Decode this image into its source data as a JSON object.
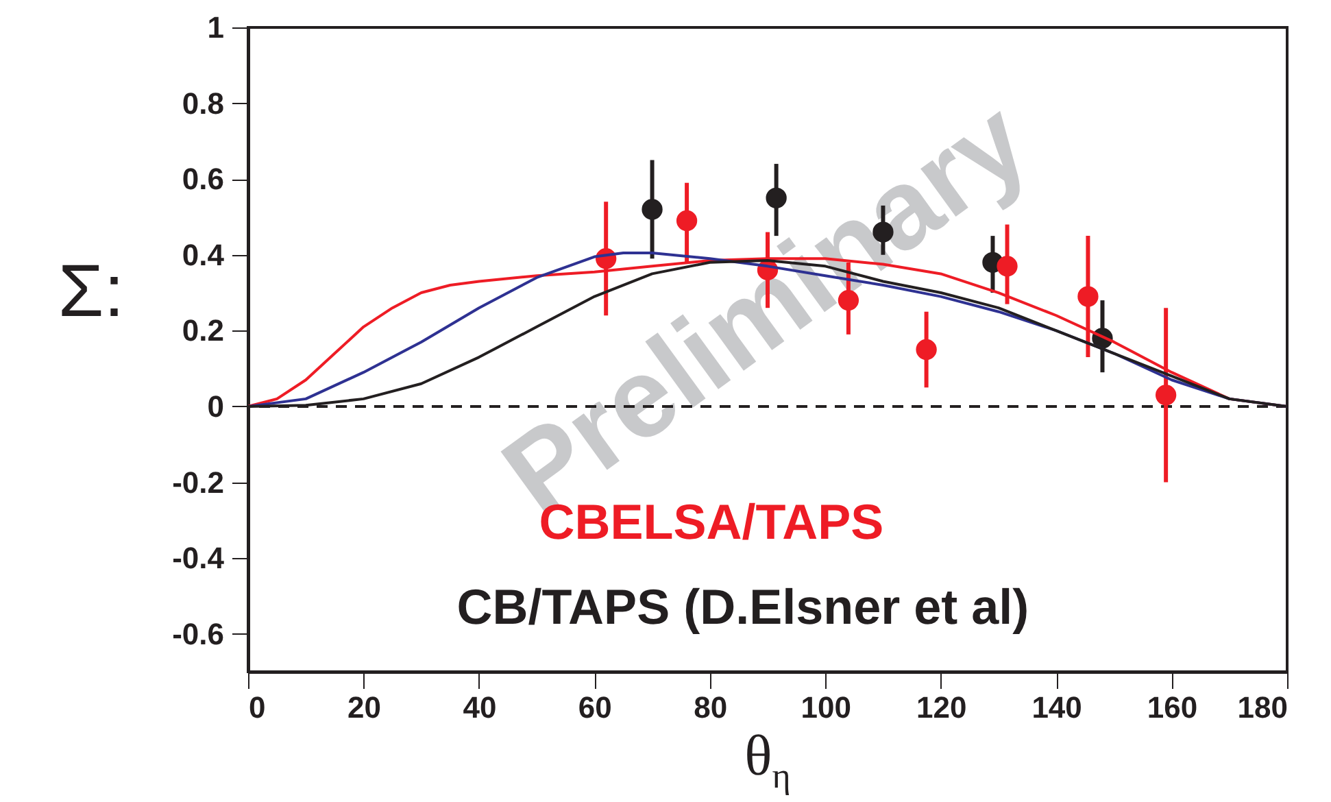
{
  "chart_data": {
    "type": "scatter",
    "xlabel": "θ$_{η}$",
    "ylabel": "Σ:",
    "xlim": [
      0,
      180
    ],
    "ylim": [
      -0.7,
      1
    ],
    "xticks": [
      0,
      20,
      40,
      60,
      80,
      100,
      120,
      140,
      160,
      180
    ],
    "yticks": [
      -0.6,
      -0.4,
      -0.2,
      0,
      0.2,
      0.4,
      0.6,
      0.8,
      1
    ],
    "grid": false,
    "legend": "bottom",
    "marker": "circle",
    "annotations": [
      "Preliminary"
    ],
    "ref_lines": [
      {
        "axis": "y",
        "value": 0,
        "color": "#231f20",
        "line_style": "dashed"
      }
    ],
    "series": [
      {
        "type": "line",
        "marker": "none",
        "color": "#ee1c25",
        "x": [
          0,
          5,
          10,
          15,
          20,
          25,
          30,
          35,
          40,
          50,
          60,
          70,
          80,
          90,
          100,
          110,
          120,
          130,
          140,
          150,
          160,
          170,
          180
        ],
        "values": [
          0,
          0.02,
          0.07,
          0.14,
          0.21,
          0.26,
          0.3,
          0.32,
          0.33,
          0.345,
          0.355,
          0.37,
          0.385,
          0.39,
          0.39,
          0.375,
          0.35,
          0.3,
          0.24,
          0.17,
          0.09,
          0.02,
          0
        ]
      },
      {
        "type": "line",
        "marker": "none",
        "color": "#2e3192",
        "x": [
          0,
          10,
          20,
          30,
          40,
          50,
          60,
          65,
          70,
          80,
          90,
          100,
          110,
          120,
          130,
          140,
          150,
          160,
          170,
          180
        ],
        "values": [
          0,
          0.02,
          0.09,
          0.17,
          0.26,
          0.34,
          0.395,
          0.405,
          0.405,
          0.39,
          0.37,
          0.345,
          0.32,
          0.29,
          0.25,
          0.2,
          0.14,
          0.07,
          0.02,
          0
        ]
      },
      {
        "type": "line",
        "marker": "none",
        "color": "#231f20",
        "x": [
          0,
          10,
          20,
          30,
          40,
          50,
          60,
          70,
          80,
          90,
          100,
          110,
          120,
          130,
          140,
          150,
          160,
          170,
          180
        ],
        "values": [
          0,
          0.003,
          0.02,
          0.06,
          0.13,
          0.21,
          0.29,
          0.35,
          0.38,
          0.385,
          0.37,
          0.33,
          0.3,
          0.26,
          0.2,
          0.14,
          0.08,
          0.02,
          0
        ]
      },
      {
        "name": "CB/TAPS (D.Elsner et al)",
        "color": "#231f20",
        "x": [
          70,
          91.5,
          110,
          129,
          148
        ],
        "values": [
          0.52,
          0.55,
          0.46,
          0.38,
          0.18
        ],
        "errors": [
          [
            0.39,
            0.65
          ],
          [
            0.45,
            0.64
          ],
          [
            0.4,
            0.53
          ],
          [
            0.3,
            0.45
          ],
          [
            0.09,
            0.28
          ]
        ]
      },
      {
        "name": "CBELSA/TAPS",
        "color": "#ee1c25",
        "x": [
          62,
          76,
          90,
          104,
          117.5,
          131.5,
          145.5,
          159
        ],
        "values": [
          0.39,
          0.49,
          0.36,
          0.28,
          0.15,
          0.37,
          0.29,
          0.03
        ],
        "errors": [
          [
            0.24,
            0.54
          ],
          [
            0.38,
            0.59
          ],
          [
            0.26,
            0.46
          ],
          [
            0.19,
            0.38
          ],
          [
            0.05,
            0.25
          ],
          [
            0.27,
            0.48
          ],
          [
            0.13,
            0.45
          ],
          [
            -0.2,
            0.26
          ]
        ]
      }
    ]
  }
}
